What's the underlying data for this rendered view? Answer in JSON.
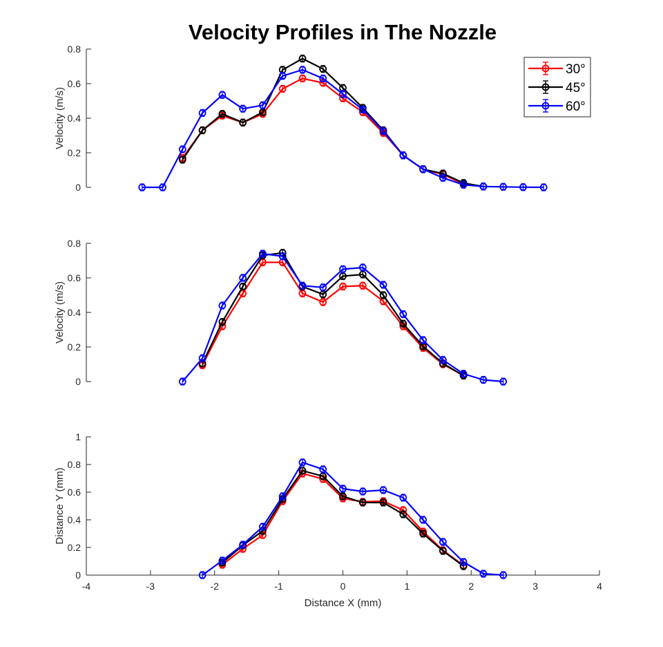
{
  "title": "Velocity Profiles in The Nozzle",
  "colors": {
    "30": "#ff0000",
    "45": "#000000",
    "60": "#0000ff"
  },
  "legend": {
    "placement": "top-right",
    "entries": [
      "30°",
      "45°",
      "60°"
    ]
  },
  "chart_data": [
    {
      "type": "line",
      "title": "Velocity Profiles in The Nozzle",
      "xlabel": "",
      "ylabel": "Velocity (m/s)",
      "xlim": [
        -4,
        4
      ],
      "ylim": [
        0,
        0.8
      ],
      "xticks": [],
      "yticks": [
        "0",
        "0.2",
        "0.4",
        "0.6",
        "0.8"
      ],
      "ytick_values": [
        0,
        0.2,
        0.4,
        0.6,
        0.8
      ],
      "legend": "top-right",
      "series": [
        {
          "name": "30°",
          "color": "#ff0000",
          "x": [
            -2.5,
            -2.19,
            -1.88,
            -1.56,
            -1.25,
            -0.94,
            -0.63,
            -0.31,
            0,
            0.31,
            0.63,
            0.94,
            1.25,
            1.56,
            1.88,
            2.19
          ],
          "y": [
            0.17,
            0.33,
            0.415,
            0.375,
            0.425,
            0.57,
            0.63,
            0.605,
            0.515,
            0.435,
            0.315,
            0.185,
            0.105,
            0.075,
            0.02,
            0.005
          ]
        },
        {
          "name": "45°",
          "color": "#000000",
          "x": [
            -2.5,
            -2.19,
            -1.88,
            -1.56,
            -1.25,
            -0.94,
            -0.63,
            -0.31,
            0,
            0.31,
            0.63,
            0.94,
            1.25,
            1.56,
            1.88,
            2.19
          ],
          "y": [
            0.16,
            0.33,
            0.425,
            0.375,
            0.435,
            0.68,
            0.745,
            0.685,
            0.575,
            0.46,
            0.33,
            0.185,
            0.105,
            0.08,
            0.025,
            0.005
          ]
        },
        {
          "name": "60°",
          "color": "#0000ff",
          "x": [
            -3.13,
            -2.81,
            -2.5,
            -2.19,
            -1.88,
            -1.56,
            -1.25,
            -0.94,
            -0.63,
            -0.31,
            0,
            0.31,
            0.63,
            0.94,
            1.25,
            1.56,
            1.88,
            2.19,
            2.5,
            2.81,
            3.13
          ],
          "y": [
            0,
            0,
            0.22,
            0.43,
            0.535,
            0.455,
            0.475,
            0.645,
            0.68,
            0.63,
            0.54,
            0.45,
            0.325,
            0.185,
            0.105,
            0.055,
            0.015,
            0.005,
            0.003,
            0.001,
            0
          ]
        }
      ]
    },
    {
      "type": "line",
      "xlabel": "",
      "ylabel": "Velocity (m/s)",
      "xlim": [
        -4,
        4
      ],
      "ylim": [
        0,
        0.8
      ],
      "xticks": [],
      "yticks": [
        "0",
        "0.2",
        "0.4",
        "0.6",
        "0.8"
      ],
      "ytick_values": [
        0,
        0.2,
        0.4,
        0.6,
        0.8
      ],
      "series": [
        {
          "name": "30°",
          "color": "#ff0000",
          "x": [
            -2.19,
            -1.88,
            -1.56,
            -1.25,
            -0.94,
            -0.63,
            -0.31,
            0,
            0.31,
            0.63,
            0.94,
            1.25,
            1.56,
            1.88
          ],
          "y": [
            0.095,
            0.32,
            0.51,
            0.69,
            0.69,
            0.51,
            0.46,
            0.55,
            0.555,
            0.465,
            0.32,
            0.195,
            0.1,
            0.035
          ]
        },
        {
          "name": "45°",
          "color": "#000000",
          "x": [
            -2.19,
            -1.88,
            -1.56,
            -1.25,
            -0.94,
            -0.63,
            -0.31,
            0,
            0.31,
            0.63,
            0.94,
            1.25,
            1.56,
            1.88
          ],
          "y": [
            0.105,
            0.345,
            0.55,
            0.73,
            0.745,
            0.55,
            0.505,
            0.61,
            0.62,
            0.5,
            0.335,
            0.205,
            0.105,
            0.035
          ]
        },
        {
          "name": "60°",
          "color": "#0000ff",
          "x": [
            -2.5,
            -2.19,
            -1.88,
            -1.56,
            -1.25,
            -0.94,
            -0.63,
            -0.31,
            0,
            0.31,
            0.63,
            0.94,
            1.25,
            1.56,
            1.88,
            2.19,
            2.5
          ],
          "y": [
            0,
            0.135,
            0.44,
            0.6,
            0.74,
            0.725,
            0.555,
            0.545,
            0.65,
            0.66,
            0.56,
            0.39,
            0.24,
            0.125,
            0.045,
            0.01,
            0
          ]
        }
      ]
    },
    {
      "type": "line",
      "xlabel": "Distance X (mm)",
      "ylabel": "Distance Y (mm)",
      "xlim": [
        -4,
        4
      ],
      "ylim": [
        0,
        1
      ],
      "xticks": [
        "-4",
        "-3",
        "-2",
        "-1",
        "0",
        "1",
        "2",
        "3",
        "4"
      ],
      "xtick_values": [
        -4,
        -3,
        -2,
        -1,
        0,
        1,
        2,
        3,
        4
      ],
      "yticks": [
        "0",
        "0.2",
        "0.4",
        "0.6",
        "0.8",
        "1"
      ],
      "ytick_values": [
        0,
        0.2,
        0.4,
        0.6,
        0.8,
        1
      ],
      "series": [
        {
          "name": "30°",
          "color": "#ff0000",
          "x": [
            -1.88,
            -1.56,
            -1.25,
            -0.94,
            -0.63,
            -0.31,
            0,
            0.31,
            0.63,
            0.94,
            1.25,
            1.56,
            1.88
          ],
          "y": [
            0.075,
            0.19,
            0.29,
            0.535,
            0.735,
            0.695,
            0.555,
            0.53,
            0.535,
            0.47,
            0.315,
            0.18,
            0.07
          ]
        },
        {
          "name": "45°",
          "color": "#000000",
          "x": [
            -1.88,
            -1.56,
            -1.25,
            -0.94,
            -0.63,
            -0.31,
            0,
            0.31,
            0.63,
            0.94,
            1.25,
            1.56,
            1.88
          ],
          "y": [
            0.09,
            0.215,
            0.32,
            0.55,
            0.755,
            0.715,
            0.57,
            0.525,
            0.525,
            0.44,
            0.3,
            0.175,
            0.065
          ]
        },
        {
          "name": "60°",
          "color": "#0000ff",
          "x": [
            -2.19,
            -1.88,
            -1.56,
            -1.25,
            -0.94,
            -0.63,
            -0.31,
            0,
            0.31,
            0.63,
            0.94,
            1.25,
            1.56,
            1.88,
            2.19,
            2.5
          ],
          "y": [
            0,
            0.105,
            0.22,
            0.35,
            0.57,
            0.815,
            0.765,
            0.625,
            0.605,
            0.615,
            0.56,
            0.4,
            0.24,
            0.095,
            0.01,
            0
          ]
        }
      ]
    }
  ]
}
